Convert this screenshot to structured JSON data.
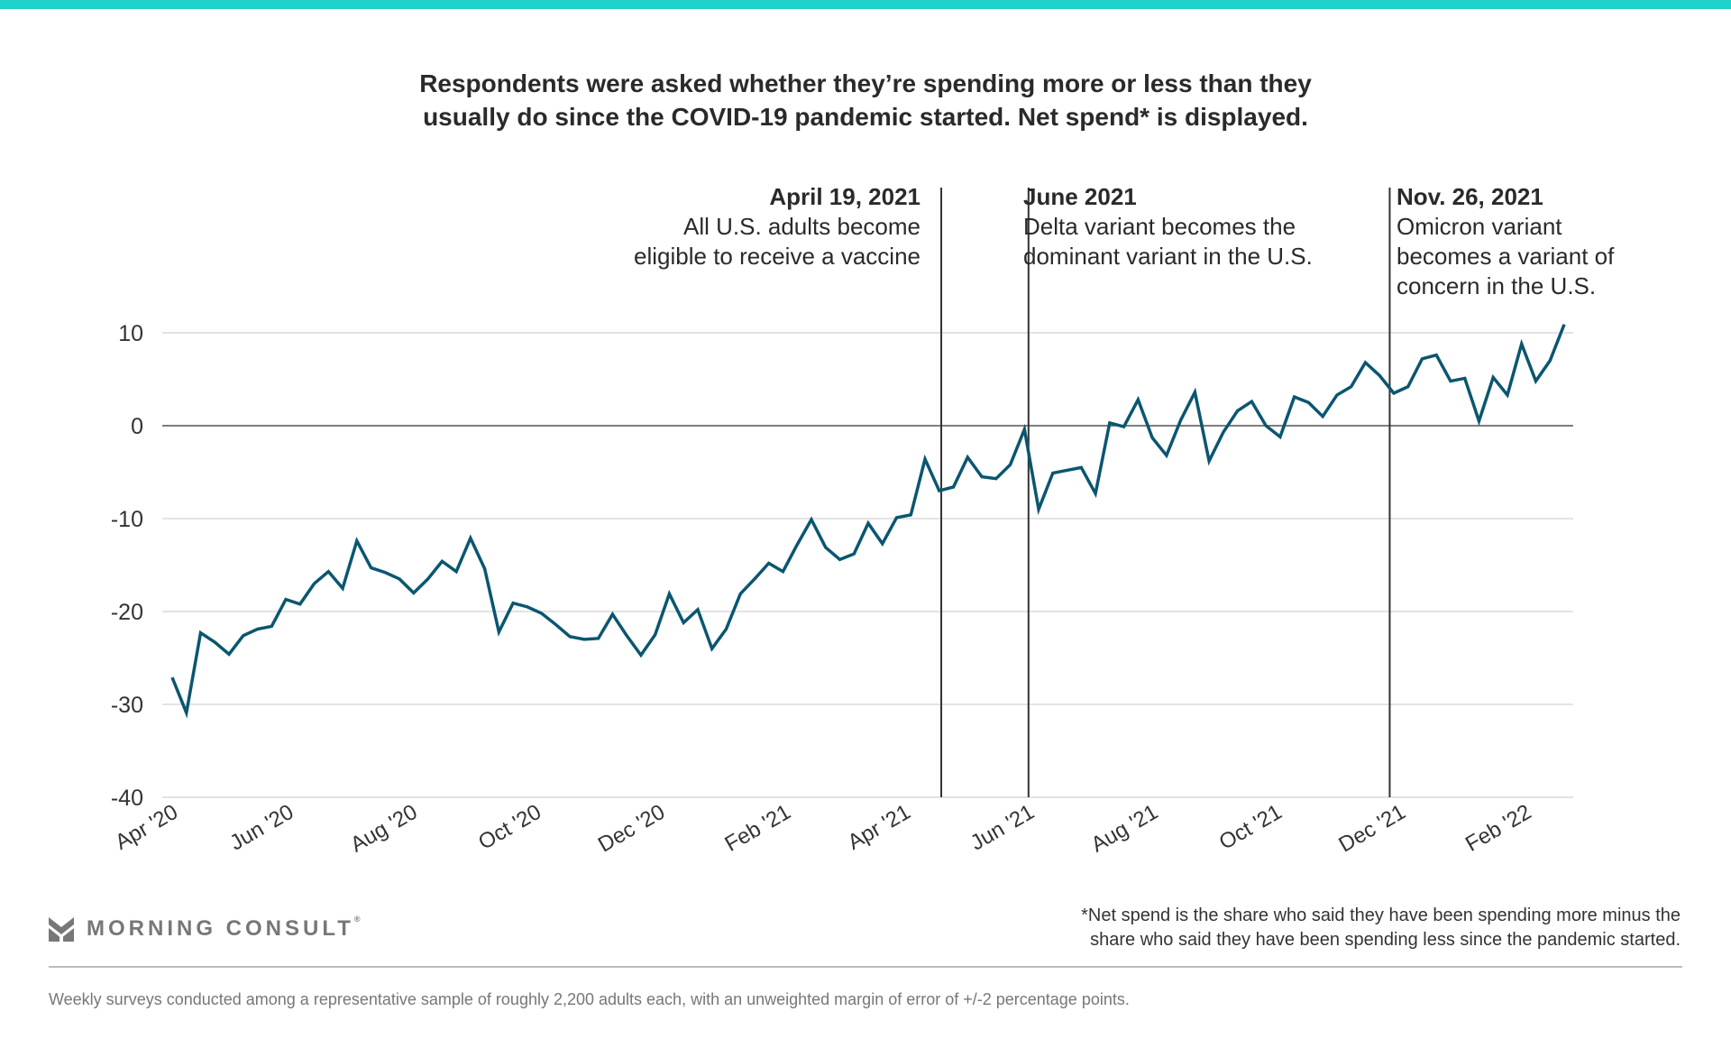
{
  "colors": {
    "top_bar": "#1fd0cb",
    "line": "#0a5670",
    "grid": "#e3e3e3",
    "zero_line": "#555555",
    "event_line": "#333333"
  },
  "title": [
    "Respondents were asked whether they’re spending more or less than they",
    "usually do since the COVID-19 pandemic started. Net spend* is displayed."
  ],
  "annotations": [
    {
      "date": "2021-04-19",
      "heading": "April 19, 2021",
      "lines": [
        "All U.S. adults become",
        "eligible to receive a vaccine"
      ],
      "align": "left-of-line"
    },
    {
      "date": "2021-06-01",
      "heading": "June 2021",
      "lines": [
        "Delta variant becomes the",
        "dominant variant in the U.S."
      ],
      "align": "right-of-line"
    },
    {
      "date": "2021-11-26",
      "heading": "Nov. 26, 2021",
      "lines": [
        "Omicron variant",
        "becomes a variant of",
        "concern in the U.S."
      ],
      "align": "right-of-line"
    }
  ],
  "chart_data": {
    "type": "line",
    "title": "Respondents were asked whether they’re spending more or less than they usually do since the COVID-19 pandemic started. Net spend* is displayed.",
    "xlabel": "",
    "ylabel": "",
    "ylim": [
      -40,
      10
    ],
    "yticks": [
      10,
      0,
      -10,
      -20,
      -30,
      -40
    ],
    "ytick_labels": [
      "10",
      "0",
      "-10",
      "-20",
      "-30",
      "-40"
    ],
    "grid": true,
    "x_frequency": "weekly",
    "x_range": [
      "2020-04-05",
      "2022-02-20"
    ],
    "xticks": [
      {
        "date": "2020-04-01",
        "label": "Apr '20"
      },
      {
        "date": "2020-06-01",
        "label": "Jun '20"
      },
      {
        "date": "2020-08-01",
        "label": "Aug '20"
      },
      {
        "date": "2020-10-01",
        "label": "Oct '20"
      },
      {
        "date": "2020-12-01",
        "label": "Dec '20"
      },
      {
        "date": "2021-02-01",
        "label": "Feb '21"
      },
      {
        "date": "2021-04-01",
        "label": "Apr '21"
      },
      {
        "date": "2021-06-01",
        "label": "Jun '21"
      },
      {
        "date": "2021-08-01",
        "label": "Aug '21"
      },
      {
        "date": "2021-10-01",
        "label": "Oct '21"
      },
      {
        "date": "2021-12-01",
        "label": "Dec '21"
      },
      {
        "date": "2022-02-01",
        "label": "Feb '22"
      }
    ],
    "values": [
      -27.1,
      -30.9,
      -22.3,
      -23.3,
      -24.6,
      -22.6,
      -21.9,
      -21.6,
      -18.7,
      -19.2,
      -17.0,
      -15.7,
      -17.5,
      -12.4,
      -15.3,
      -15.8,
      -16.5,
      -18.0,
      -16.5,
      -14.6,
      -15.7,
      -12.1,
      -15.4,
      -22.2,
      -19.1,
      -19.5,
      -20.2,
      -21.4,
      -22.7,
      -23.0,
      -22.9,
      -20.3,
      -22.6,
      -24.7,
      -22.5,
      -18.1,
      -21.2,
      -19.8,
      -24.0,
      -21.9,
      -18.1,
      -16.5,
      -14.8,
      -15.7,
      -12.8,
      -10.1,
      -13.1,
      -14.4,
      -13.8,
      -10.5,
      -12.7,
      -9.9,
      -9.6,
      -3.6,
      -7.0,
      -6.6,
      -3.4,
      -5.5,
      -5.7,
      -4.2,
      -0.4,
      -9.0,
      -5.1,
      -4.8,
      -4.5,
      -7.3,
      0.3,
      -0.1,
      2.8,
      -1.3,
      -3.2,
      0.6,
      3.6,
      -3.8,
      -0.7,
      1.6,
      2.6,
      0.0,
      -1.2,
      3.1,
      2.5,
      1.0,
      3.3,
      4.2,
      6.8,
      5.4,
      3.5,
      4.2,
      7.2,
      7.6,
      4.8,
      5.1,
      0.5,
      5.2,
      3.3,
      8.8,
      4.8,
      7.0,
      10.9
    ]
  },
  "footer": {
    "logo_text": "MORNING CONSULT",
    "logo_mark": "®",
    "footnote": [
      "*Net spend is the share who said they have been spending more minus the",
      "share who said they have been spending less since the pandemic started."
    ],
    "source": "Weekly surveys conducted among a representative sample of roughly 2,200 adults each, with an unweighted margin of error of +/-2 percentage points."
  }
}
